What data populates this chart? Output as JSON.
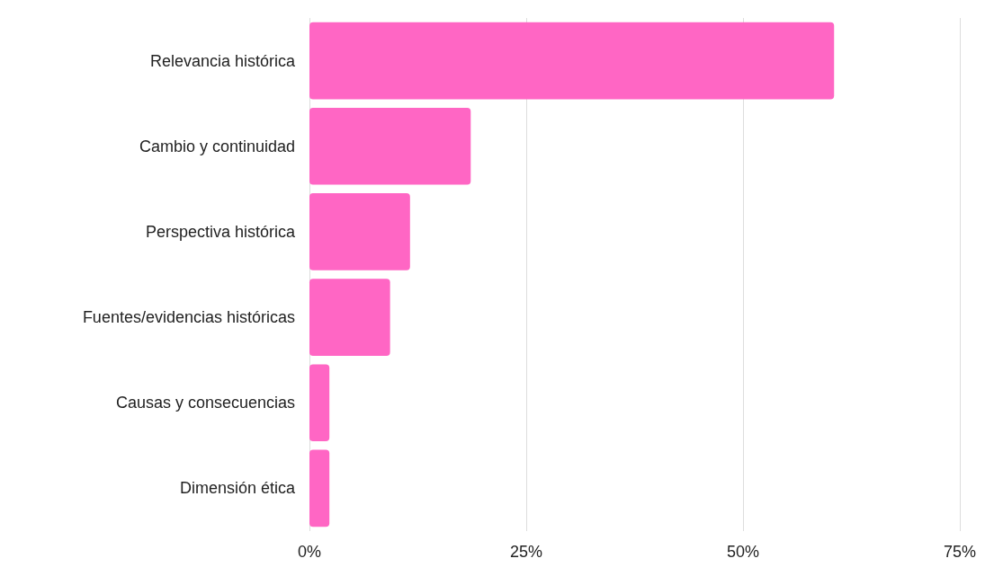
{
  "chart_data": {
    "type": "bar",
    "orientation": "horizontal",
    "categories": [
      "Relevancia histórica",
      "Cambio y continuidad",
      "Perspectiva histórica",
      "Fuentes/evidencias históricas",
      "Causas y consecuencias",
      "Dimensión ética"
    ],
    "values": [
      60.5,
      18.6,
      11.6,
      9.3,
      2.3,
      2.3
    ],
    "color": "#ff66c4",
    "xlim": [
      0,
      75
    ],
    "xticks": [
      {
        "value": 0,
        "label": "0%"
      },
      {
        "value": 25,
        "label": "25%"
      },
      {
        "value": 50,
        "label": "50%"
      },
      {
        "value": 75,
        "label": "75%"
      }
    ],
    "grid": "x"
  }
}
